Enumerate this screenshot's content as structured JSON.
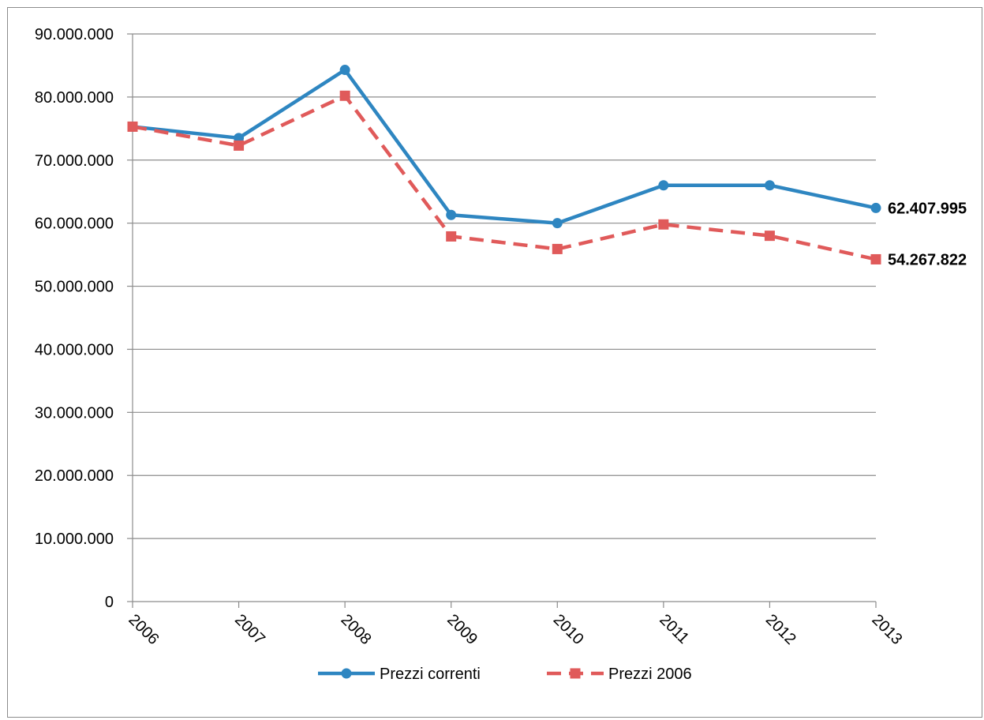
{
  "chart_data": {
    "type": "line",
    "categories": [
      "2006",
      "2007",
      "2008",
      "2009",
      "2010",
      "2011",
      "2012",
      "2013"
    ],
    "series": [
      {
        "name": "Prezzi correnti",
        "color": "#2E86C1",
        "marker": "circle",
        "dash": "solid",
        "values": [
          75300000,
          73500000,
          84300000,
          61300000,
          60000000,
          66000000,
          66000000,
          62407995
        ],
        "end_label": "62.407.995"
      },
      {
        "name": "Prezzi 2006",
        "color": "#E05A5A",
        "marker": "square",
        "dash": "dashed",
        "values": [
          75300000,
          72300000,
          80200000,
          57900000,
          55900000,
          59800000,
          58000000,
          54267822
        ],
        "end_label": "54.267.822"
      }
    ],
    "ylim": [
      0,
      90000000
    ],
    "y_ticks": [
      0,
      10000000,
      20000000,
      30000000,
      40000000,
      50000000,
      60000000,
      70000000,
      80000000,
      90000000
    ],
    "y_tick_labels": [
      "0",
      "10.000.000",
      "20.000.000",
      "30.000.000",
      "40.000.000",
      "50.000.000",
      "60.000.000",
      "70.000.000",
      "80.000.000",
      "90.000.000"
    ],
    "grid": "horizontal",
    "legend_position": "bottom",
    "title": "",
    "xlabel": "",
    "ylabel": ""
  }
}
